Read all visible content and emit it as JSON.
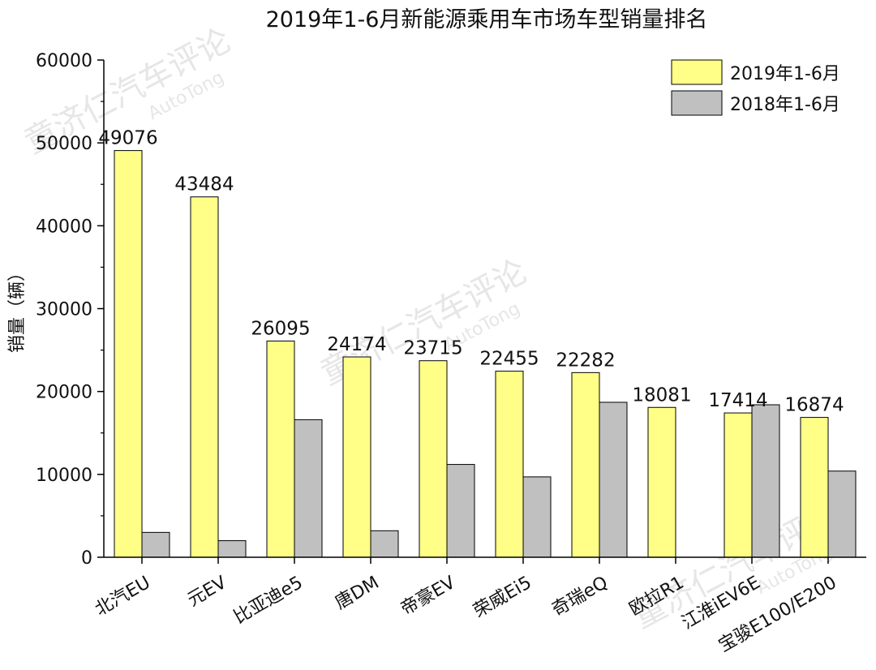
{
  "chart_data": {
    "type": "bar",
    "title": "2019年1-6月新能源乘用车市场车型销量排名",
    "ylabel": "销量（辆）",
    "xlabel": "",
    "ylim": [
      0,
      60000
    ],
    "yticks": [
      0,
      10000,
      20000,
      30000,
      40000,
      50000,
      60000
    ],
    "grid": false,
    "legend_position": "top-right",
    "categories": [
      "北汽EU",
      "元EV",
      "比亚迪e5",
      "唐DM",
      "帝豪EV",
      "荣威Ei5",
      "奇瑞eQ",
      "欧拉R1",
      "江淮iEV6E",
      "宝骏E100/E200"
    ],
    "series": [
      {
        "name": "2019年1-6月",
        "color": "#ffff88",
        "values": [
          49076,
          43484,
          26095,
          24174,
          23715,
          22455,
          22282,
          18081,
          17414,
          16874
        ],
        "labels": [
          "49076",
          "43484",
          "26095",
          "24174",
          "23715",
          "22455",
          "22282",
          "18081",
          "17414",
          "16874"
        ]
      },
      {
        "name": "2018年1-6月",
        "color": "#c0c0c0",
        "values": [
          3000,
          2000,
          16600,
          3200,
          11200,
          9700,
          18700,
          0,
          18400,
          10400
        ]
      }
    ]
  },
  "watermark": {
    "text": "童济仁汽车评论",
    "sub": "AutoTong"
  }
}
